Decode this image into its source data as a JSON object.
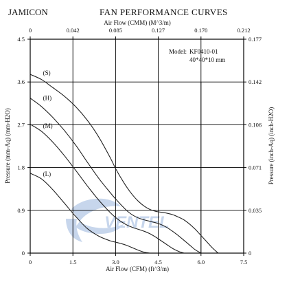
{
  "brand": "JAMICON",
  "title": "FAN PERFORMANCE CURVES",
  "watermark": {
    "text": "VENTEL",
    "color": "#c7d6ec"
  },
  "chart_data": {
    "type": "line",
    "model_label": "Model:",
    "model": "KF0410-01",
    "size": "40*40*10 mm",
    "xlabel": "Air Flow (CFM) (ft^3/m)",
    "x2label": "Air Flow (CMM) (M^3/m)",
    "ylabel": "Pressure (mm-Aq) (mm-H2O)",
    "y2label": "Pressure (inch-Aq) (inch-H2O)",
    "xlim": [
      0,
      7.5
    ],
    "ylim": [
      0,
      4.5
    ],
    "x_ticks": [
      "0",
      "1.5",
      "3.0",
      "4.5",
      "6.0",
      "7.5"
    ],
    "x_tick_values": [
      0,
      1.5,
      3.0,
      4.5,
      6.0,
      7.5
    ],
    "x2_ticks": [
      "0",
      "0.042",
      "0.085",
      "0.127",
      "0.170",
      "0.212"
    ],
    "y_ticks": [
      "0",
      "0.9",
      "1.8",
      "2.7",
      "3.6",
      "4.5"
    ],
    "y_tick_values": [
      0,
      0.9,
      1.8,
      2.7,
      3.6,
      4.5
    ],
    "y2_ticks": [
      "0",
      "0.035",
      "0.071",
      "0.106",
      "0.142",
      "0.177"
    ],
    "grid": true,
    "extra_vline": {
      "x": 6.0,
      "y_top": 3.6
    },
    "series": [
      {
        "name": "(S)",
        "label_at": [
          0.45,
          3.75
        ],
        "x": [
          0,
          0.4,
          0.8,
          1.2,
          1.6,
          2.0,
          2.4,
          2.8,
          3.0,
          3.2,
          3.4,
          3.6,
          3.8,
          4.0,
          4.2,
          4.4,
          4.6,
          4.8,
          5.0,
          5.2,
          5.4,
          5.6,
          5.8,
          6.0,
          6.2,
          6.4,
          6.6
        ],
        "y": [
          3.76,
          3.65,
          3.48,
          3.3,
          3.08,
          2.8,
          2.45,
          2.02,
          1.78,
          1.57,
          1.38,
          1.22,
          1.09,
          0.99,
          0.92,
          0.88,
          0.86,
          0.84,
          0.81,
          0.76,
          0.7,
          0.61,
          0.5,
          0.37,
          0.24,
          0.11,
          0.0
        ]
      },
      {
        "name": "(H)",
        "label_at": [
          0.45,
          3.22
        ],
        "x": [
          0,
          0.4,
          0.8,
          1.2,
          1.6,
          2.0,
          2.4,
          2.8,
          3.0,
          3.2,
          3.4,
          3.6,
          3.8,
          4.0,
          4.2,
          4.4,
          4.6,
          4.8,
          5.0,
          5.2,
          5.4,
          5.6,
          5.8,
          6.0
        ],
        "y": [
          3.26,
          3.08,
          2.85,
          2.58,
          2.27,
          1.92,
          1.58,
          1.28,
          1.14,
          1.01,
          0.89,
          0.8,
          0.74,
          0.7,
          0.67,
          0.64,
          0.6,
          0.54,
          0.46,
          0.37,
          0.27,
          0.17,
          0.07,
          0.0
        ]
      },
      {
        "name": "(M)",
        "label_at": [
          0.45,
          2.63
        ],
        "x": [
          0,
          0.4,
          0.8,
          1.2,
          1.6,
          2.0,
          2.4,
          2.8,
          3.0,
          3.2,
          3.4,
          3.6,
          3.8,
          4.0,
          4.2,
          4.4,
          4.6,
          4.8,
          5.0,
          5.2,
          5.4
        ],
        "y": [
          2.71,
          2.56,
          2.33,
          2.05,
          1.74,
          1.42,
          1.12,
          0.86,
          0.75,
          0.66,
          0.59,
          0.54,
          0.5,
          0.46,
          0.41,
          0.34,
          0.26,
          0.18,
          0.1,
          0.04,
          0.0
        ]
      },
      {
        "name": "(L)",
        "label_at": [
          0.45,
          1.62
        ],
        "x": [
          0,
          0.4,
          0.8,
          1.2,
          1.6,
          2.0,
          2.4,
          2.8,
          3.0,
          3.2,
          3.4,
          3.6,
          3.8,
          4.0,
          4.2
        ],
        "y": [
          1.68,
          1.56,
          1.33,
          1.05,
          0.77,
          0.52,
          0.36,
          0.26,
          0.23,
          0.2,
          0.16,
          0.11,
          0.06,
          0.02,
          0.0
        ]
      }
    ]
  }
}
